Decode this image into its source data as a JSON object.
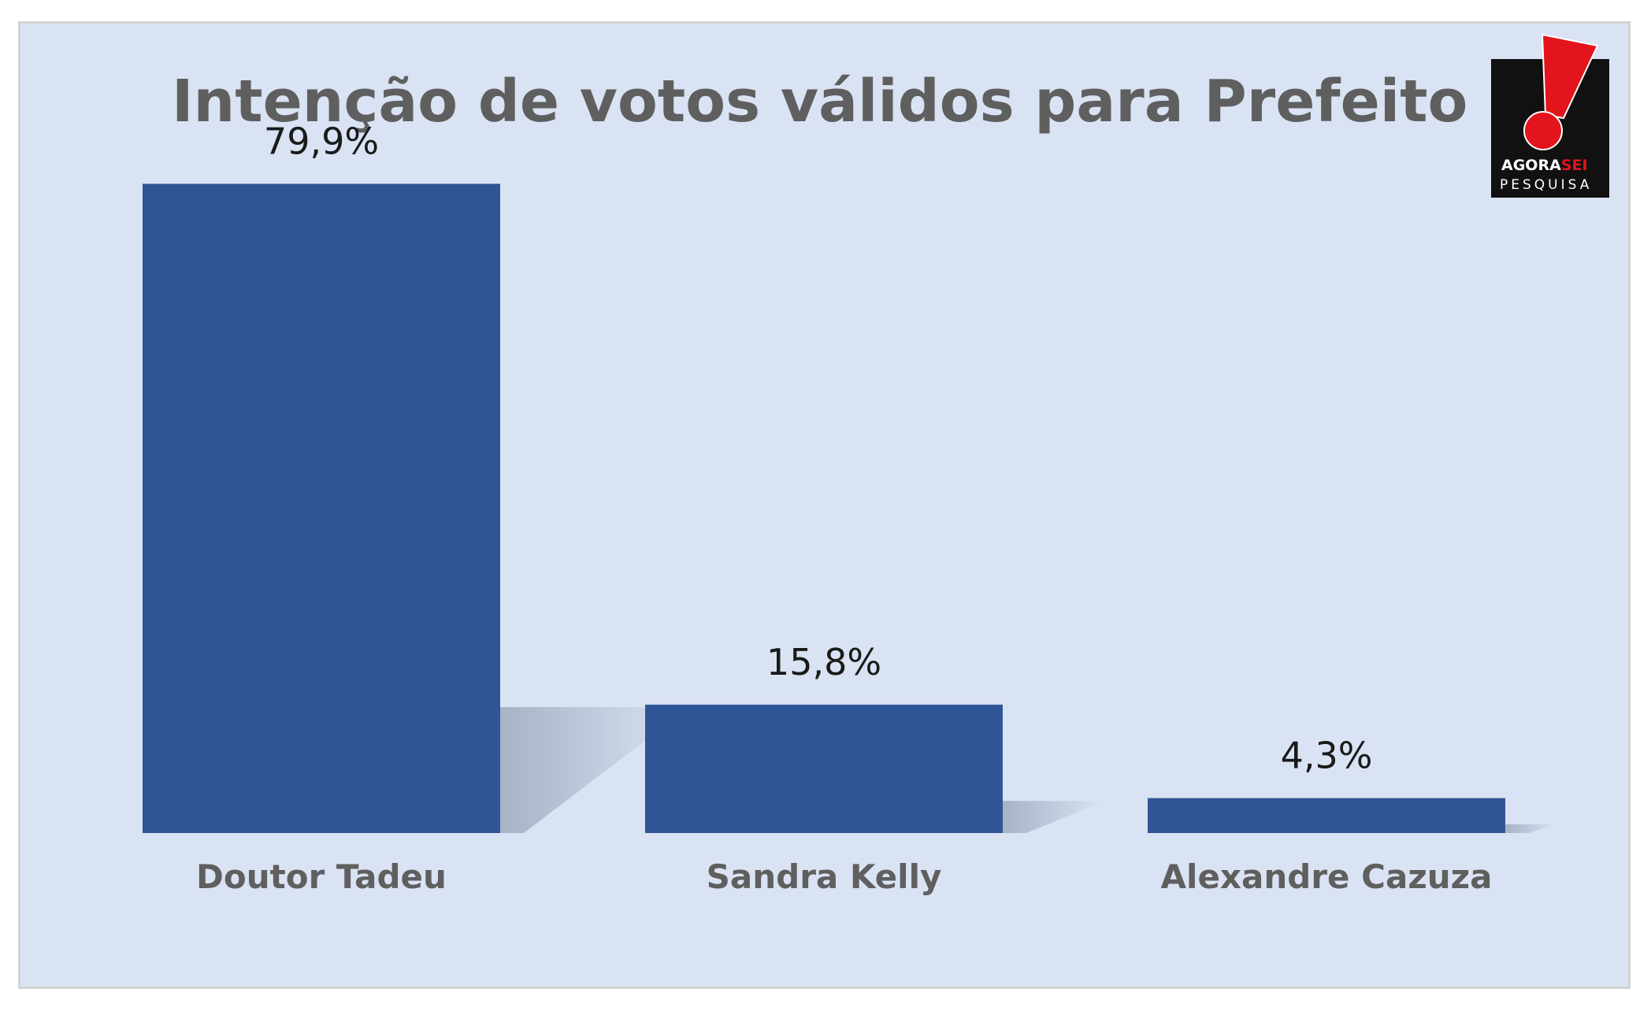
{
  "chart_data": {
    "type": "bar",
    "title": "Intenção de votos válidos para Prefeito",
    "categories": [
      "Doutor Tadeu",
      "Sandra Kelly",
      "Alexandre Cazuza"
    ],
    "values": [
      79.9,
      15.8,
      4.3
    ],
    "value_labels": [
      "79,9%",
      "15,8%",
      "4,3%"
    ],
    "ylim": [
      0,
      100
    ],
    "grid": false,
    "legend": "none",
    "bar_color": "#2f5597",
    "background_color": "#dae3f3"
  },
  "logo": {
    "name": "AGORASEI",
    "line1_part1": "AGORA",
    "line1_part2": "SEI",
    "line2": "PESQUISA",
    "accent_color": "#e3141b"
  }
}
